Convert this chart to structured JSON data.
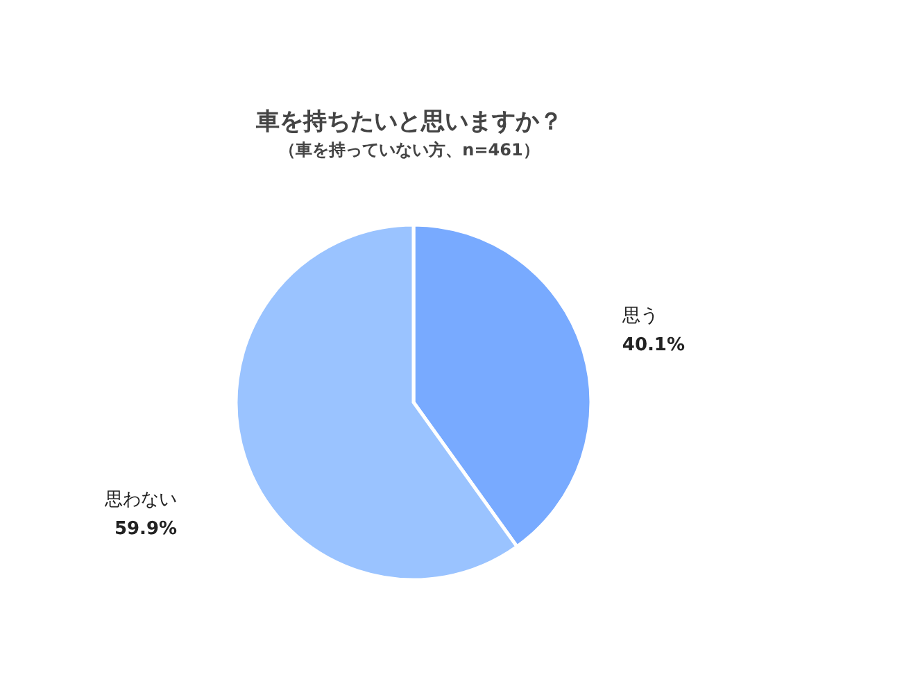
{
  "chart_data": {
    "type": "pie",
    "title": "車を持ちたいと思いますか？",
    "subtitle": "（車を持っていない方、n=461）",
    "categories": [
      "思う",
      "思わない"
    ],
    "values": [
      40.1,
      59.9
    ],
    "colors": [
      "#78aaff",
      "#9ac3ff"
    ],
    "value_labels": [
      "40.1%",
      "59.9%"
    ]
  }
}
